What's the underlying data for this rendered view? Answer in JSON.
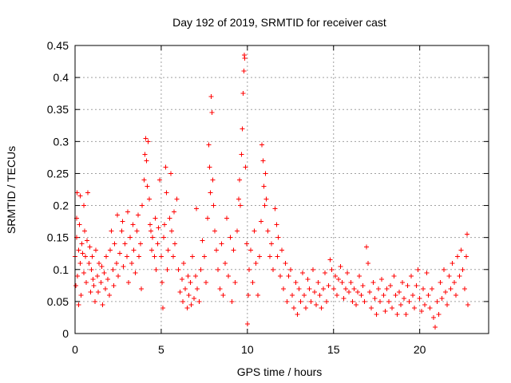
{
  "chart_data": {
    "type": "scatter",
    "title": "Day 192 of 2019, SRMTID for receiver cast",
    "xlabel": "GPS time / hours",
    "ylabel": "SRMTID / TECUs",
    "xlim": [
      0,
      24
    ],
    "ylim": [
      0,
      0.45
    ],
    "x_ticks": [
      0,
      5,
      10,
      15,
      20
    ],
    "x_tick_labels": [
      "0",
      "5",
      "10",
      "15",
      "20"
    ],
    "y_ticks": [
      0,
      0.05,
      0.1,
      0.15,
      0.2,
      0.25,
      0.3,
      0.35,
      0.4,
      0.45
    ],
    "y_tick_labels": [
      "0",
      "0.05",
      "0.1",
      "0.15",
      "0.2",
      "0.25",
      "0.3",
      "0.35",
      "0.4",
      "0.45"
    ],
    "grid": true,
    "marker": "plus",
    "series": [
      {
        "name": "SRMTID",
        "color": "#ff0000",
        "points": [
          [
            0.0,
            0.12
          ],
          [
            0.05,
            0.075
          ],
          [
            0.1,
            0.15
          ],
          [
            0.1,
            0.18
          ],
          [
            0.12,
            0.22
          ],
          [
            0.15,
            0.09
          ],
          [
            0.2,
            0.13
          ],
          [
            0.2,
            0.045
          ],
          [
            0.25,
            0.17
          ],
          [
            0.3,
            0.11
          ],
          [
            0.3,
            0.215
          ],
          [
            0.35,
            0.06
          ],
          [
            0.4,
            0.14
          ],
          [
            0.45,
            0.125
          ],
          [
            0.5,
            0.095
          ],
          [
            0.5,
            0.2
          ],
          [
            0.55,
            0.16
          ],
          [
            0.6,
            0.12
          ],
          [
            0.65,
            0.08
          ],
          [
            0.7,
            0.145
          ],
          [
            0.75,
            0.22
          ],
          [
            0.8,
            0.11
          ],
          [
            0.85,
            0.135
          ],
          [
            0.9,
            0.065
          ],
          [
            0.95,
            0.1
          ],
          [
            1.0,
            0.12
          ],
          [
            1.05,
            0.085
          ],
          [
            1.1,
            0.075
          ],
          [
            1.15,
            0.05
          ],
          [
            1.2,
            0.13
          ],
          [
            1.3,
            0.09
          ],
          [
            1.35,
            0.065
          ],
          [
            1.4,
            0.11
          ],
          [
            1.5,
            0.08
          ],
          [
            1.55,
            0.105
          ],
          [
            1.6,
            0.045
          ],
          [
            1.7,
            0.095
          ],
          [
            1.75,
            0.07
          ],
          [
            1.8,
            0.12
          ],
          [
            1.9,
            0.085
          ],
          [
            2.0,
            0.06
          ],
          [
            2.05,
            0.13
          ],
          [
            2.1,
            0.16
          ],
          [
            2.2,
            0.1
          ],
          [
            2.25,
            0.075
          ],
          [
            2.3,
            0.14
          ],
          [
            2.4,
            0.11
          ],
          [
            2.45,
            0.185
          ],
          [
            2.5,
            0.09
          ],
          [
            2.6,
            0.125
          ],
          [
            2.7,
            0.16
          ],
          [
            2.75,
            0.175
          ],
          [
            2.8,
            0.105
          ],
          [
            2.9,
            0.14
          ],
          [
            3.0,
            0.12
          ],
          [
            3.05,
            0.19
          ],
          [
            3.1,
            0.08
          ],
          [
            3.2,
            0.15
          ],
          [
            3.3,
            0.11
          ],
          [
            3.35,
            0.17
          ],
          [
            3.4,
            0.13
          ],
          [
            3.5,
            0.095
          ],
          [
            3.6,
            0.16
          ],
          [
            3.65,
            0.185
          ],
          [
            3.7,
            0.12
          ],
          [
            3.8,
            0.14
          ],
          [
            3.85,
            0.07
          ],
          [
            3.9,
            0.2
          ],
          [
            4.0,
            0.24
          ],
          [
            4.05,
            0.28
          ],
          [
            4.1,
            0.305
          ],
          [
            4.15,
            0.27
          ],
          [
            4.2,
            0.23
          ],
          [
            4.25,
            0.3
          ],
          [
            4.3,
            0.21
          ],
          [
            4.35,
            0.17
          ],
          [
            4.4,
            0.16
          ],
          [
            4.45,
            0.13
          ],
          [
            4.5,
            0.15
          ],
          [
            4.6,
            0.12
          ],
          [
            4.65,
            0.18
          ],
          [
            4.7,
            0.1
          ],
          [
            4.8,
            0.14
          ],
          [
            4.85,
            0.165
          ],
          [
            4.9,
            0.24
          ],
          [
            5.0,
            0.12
          ],
          [
            5.05,
            0.08
          ],
          [
            5.1,
            0.04
          ],
          [
            5.15,
            0.15
          ],
          [
            5.2,
            0.17
          ],
          [
            5.25,
            0.26
          ],
          [
            5.3,
            0.22
          ],
          [
            5.35,
            0.1
          ],
          [
            5.4,
            0.13
          ],
          [
            5.5,
            0.18
          ],
          [
            5.55,
            0.25
          ],
          [
            5.6,
            0.16
          ],
          [
            5.7,
            0.12
          ],
          [
            5.75,
            0.19
          ],
          [
            5.8,
            0.14
          ],
          [
            5.9,
            0.21
          ],
          [
            6.0,
            0.1
          ],
          [
            6.1,
            0.065
          ],
          [
            6.2,
            0.085
          ],
          [
            6.25,
            0.05
          ],
          [
            6.3,
            0.11
          ],
          [
            6.4,
            0.07
          ],
          [
            6.5,
            0.04
          ],
          [
            6.55,
            0.09
          ],
          [
            6.6,
            0.06
          ],
          [
            6.7,
            0.08
          ],
          [
            6.75,
            0.045
          ],
          [
            6.8,
            0.12
          ],
          [
            6.9,
            0.055
          ],
          [
            7.0,
            0.09
          ],
          [
            7.05,
            0.195
          ],
          [
            7.1,
            0.07
          ],
          [
            7.2,
            0.05
          ],
          [
            7.3,
            0.1
          ],
          [
            7.4,
            0.145
          ],
          [
            7.5,
            0.12
          ],
          [
            7.6,
            0.08
          ],
          [
            7.7,
            0.18
          ],
          [
            7.75,
            0.295
          ],
          [
            7.8,
            0.26
          ],
          [
            7.85,
            0.22
          ],
          [
            7.9,
            0.37
          ],
          [
            7.95,
            0.345
          ],
          [
            8.0,
            0.24
          ],
          [
            8.05,
            0.2
          ],
          [
            8.1,
            0.16
          ],
          [
            8.2,
            0.13
          ],
          [
            8.3,
            0.1
          ],
          [
            8.4,
            0.07
          ],
          [
            8.5,
            0.14
          ],
          [
            8.6,
            0.06
          ],
          [
            8.7,
            0.11
          ],
          [
            8.8,
            0.18
          ],
          [
            8.9,
            0.09
          ],
          [
            9.0,
            0.15
          ],
          [
            9.1,
            0.05
          ],
          [
            9.2,
            0.13
          ],
          [
            9.3,
            0.08
          ],
          [
            9.4,
            0.16
          ],
          [
            9.5,
            0.21
          ],
          [
            9.55,
            0.24
          ],
          [
            9.6,
            0.2
          ],
          [
            9.65,
            0.28
          ],
          [
            9.7,
            0.32
          ],
          [
            9.75,
            0.375
          ],
          [
            9.8,
            0.41
          ],
          [
            9.82,
            0.435
          ],
          [
            9.85,
            0.43
          ],
          [
            9.9,
            0.26
          ],
          [
            9.95,
            0.14
          ],
          [
            10.0,
            0.015
          ],
          [
            10.05,
            0.06
          ],
          [
            10.1,
            0.1
          ],
          [
            10.2,
            0.13
          ],
          [
            10.3,
            0.08
          ],
          [
            10.4,
            0.16
          ],
          [
            10.5,
            0.11
          ],
          [
            10.6,
            0.06
          ],
          [
            10.7,
            0.12
          ],
          [
            10.8,
            0.175
          ],
          [
            10.85,
            0.295
          ],
          [
            10.9,
            0.27
          ],
          [
            10.95,
            0.23
          ],
          [
            11.0,
            0.2
          ],
          [
            11.05,
            0.25
          ],
          [
            11.1,
            0.21
          ],
          [
            11.2,
            0.16
          ],
          [
            11.3,
            0.12
          ],
          [
            11.4,
            0.14
          ],
          [
            11.5,
            0.1
          ],
          [
            11.6,
            0.195
          ],
          [
            11.7,
            0.17
          ],
          [
            11.75,
            0.12
          ],
          [
            11.8,
            0.15
          ],
          [
            11.9,
            0.09
          ],
          [
            12.0,
            0.13
          ],
          [
            12.1,
            0.07
          ],
          [
            12.2,
            0.11
          ],
          [
            12.3,
            0.05
          ],
          [
            12.4,
            0.09
          ],
          [
            12.5,
            0.1
          ],
          [
            12.6,
            0.06
          ],
          [
            12.7,
            0.04
          ],
          [
            12.8,
            0.08
          ],
          [
            12.9,
            0.03
          ],
          [
            13.0,
            0.07
          ],
          [
            13.1,
            0.05
          ],
          [
            13.2,
            0.095
          ],
          [
            13.3,
            0.06
          ],
          [
            13.4,
            0.04
          ],
          [
            13.5,
            0.085
          ],
          [
            13.6,
            0.07
          ],
          [
            13.7,
            0.05
          ],
          [
            13.8,
            0.1
          ],
          [
            13.9,
            0.065
          ],
          [
            14.0,
            0.045
          ],
          [
            14.1,
            0.08
          ],
          [
            14.2,
            0.06
          ],
          [
            14.3,
            0.04
          ],
          [
            14.4,
            0.07
          ],
          [
            14.5,
            0.095
          ],
          [
            14.6,
            0.05
          ],
          [
            14.7,
            0.075
          ],
          [
            14.8,
            0.115
          ],
          [
            14.9,
            0.1
          ],
          [
            15.0,
            0.07
          ],
          [
            15.1,
            0.09
          ],
          [
            15.2,
            0.06
          ],
          [
            15.3,
            0.085
          ],
          [
            15.4,
            0.105
          ],
          [
            15.5,
            0.08
          ],
          [
            15.6,
            0.055
          ],
          [
            15.7,
            0.07
          ],
          [
            15.8,
            0.095
          ],
          [
            15.9,
            0.065
          ],
          [
            16.0,
            0.08
          ],
          [
            16.1,
            0.05
          ],
          [
            16.2,
            0.07
          ],
          [
            16.3,
            0.045
          ],
          [
            16.4,
            0.065
          ],
          [
            16.5,
            0.09
          ],
          [
            16.6,
            0.06
          ],
          [
            16.7,
            0.075
          ],
          [
            16.8,
            0.05
          ],
          [
            16.9,
            0.135
          ],
          [
            17.0,
            0.11
          ],
          [
            17.1,
            0.065
          ],
          [
            17.2,
            0.04
          ],
          [
            17.3,
            0.08
          ],
          [
            17.4,
            0.055
          ],
          [
            17.5,
            0.03
          ],
          [
            17.6,
            0.07
          ],
          [
            17.7,
            0.05
          ],
          [
            17.8,
            0.085
          ],
          [
            17.9,
            0.06
          ],
          [
            18.0,
            0.035
          ],
          [
            18.1,
            0.07
          ],
          [
            18.2,
            0.05
          ],
          [
            18.3,
            0.075
          ],
          [
            18.4,
            0.04
          ],
          [
            18.5,
            0.09
          ],
          [
            18.6,
            0.06
          ],
          [
            18.7,
            0.03
          ],
          [
            18.8,
            0.065
          ],
          [
            18.9,
            0.045
          ],
          [
            19.0,
            0.08
          ],
          [
            19.1,
            0.055
          ],
          [
            19.2,
            0.03
          ],
          [
            19.3,
            0.075
          ],
          [
            19.4,
            0.05
          ],
          [
            19.5,
            0.09
          ],
          [
            19.6,
            0.06
          ],
          [
            19.7,
            0.04
          ],
          [
            19.8,
            0.075
          ],
          [
            19.9,
            0.1
          ],
          [
            20.0,
            0.055
          ],
          [
            20.1,
            0.035
          ],
          [
            20.2,
            0.07
          ],
          [
            20.3,
            0.045
          ],
          [
            20.4,
            0.095
          ],
          [
            20.5,
            0.06
          ],
          [
            20.6,
            0.04
          ],
          [
            20.7,
            0.07
          ],
          [
            20.8,
            0.025
          ],
          [
            20.9,
            0.01
          ],
          [
            21.0,
            0.05
          ],
          [
            21.1,
            0.03
          ],
          [
            21.2,
            0.08
          ],
          [
            21.3,
            0.055
          ],
          [
            21.4,
            0.1
          ],
          [
            21.5,
            0.065
          ],
          [
            21.6,
            0.045
          ],
          [
            21.7,
            0.09
          ],
          [
            21.8,
            0.07
          ],
          [
            21.9,
            0.11
          ],
          [
            22.0,
            0.08
          ],
          [
            22.1,
            0.06
          ],
          [
            22.2,
            0.12
          ],
          [
            22.3,
            0.09
          ],
          [
            22.4,
            0.13
          ],
          [
            22.5,
            0.1
          ],
          [
            22.6,
            0.07
          ],
          [
            22.7,
            0.12
          ],
          [
            22.75,
            0.155
          ],
          [
            22.8,
            0.045
          ]
        ]
      }
    ]
  }
}
